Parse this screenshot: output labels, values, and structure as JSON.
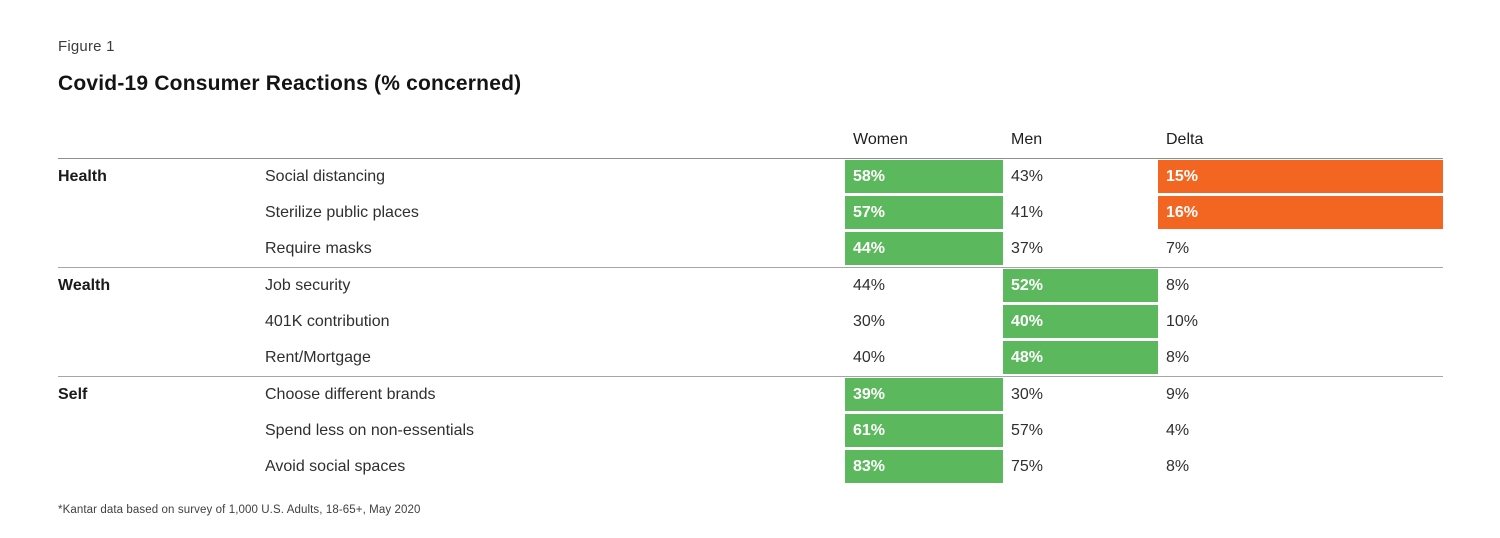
{
  "figure_label": "Figure 1",
  "title": "Covid-19 Consumer Reactions (% concerned)",
  "colors": {
    "green": "#5CB85C",
    "orange": "#F36621"
  },
  "table": {
    "columns": [
      "Women",
      "Men",
      "Delta"
    ],
    "sections": [
      {
        "category": "Health",
        "rows": [
          {
            "item": "Social distancing",
            "women": "58%",
            "men": "43%",
            "delta": "15%",
            "highlighted": "women",
            "delta_highlighted": true
          },
          {
            "item": "Sterilize public places",
            "women": "57%",
            "men": "41%",
            "delta": "16%",
            "highlighted": "women",
            "delta_highlighted": true
          },
          {
            "item": "Require masks",
            "women": "44%",
            "men": "37%",
            "delta": "7%",
            "highlighted": "women",
            "delta_highlighted": false
          }
        ]
      },
      {
        "category": "Wealth",
        "rows": [
          {
            "item": "Job security",
            "women": "44%",
            "men": "52%",
            "delta": "8%",
            "highlighted": "men",
            "delta_highlighted": false
          },
          {
            "item": "401K contribution",
            "women": "30%",
            "men": "40%",
            "delta": "10%",
            "highlighted": "men",
            "delta_highlighted": false
          },
          {
            "item": "Rent/Mortgage",
            "women": "40%",
            "men": "48%",
            "delta": "8%",
            "highlighted": "men",
            "delta_highlighted": false
          }
        ]
      },
      {
        "category": "Self",
        "rows": [
          {
            "item": "Choose different brands",
            "women": "39%",
            "men": "30%",
            "delta": "9%",
            "highlighted": "women",
            "delta_highlighted": false
          },
          {
            "item": "Spend less on non-essentials",
            "women": "61%",
            "men": "57%",
            "delta": "4%",
            "highlighted": "women",
            "delta_highlighted": false
          },
          {
            "item": "Avoid social spaces",
            "women": "83%",
            "men": "75%",
            "delta": "8%",
            "highlighted": "women",
            "delta_highlighted": false
          }
        ]
      }
    ]
  },
  "footnote": "*Kantar data based on survey of 1,000 U.S. Adults, 18-65+, May 2020",
  "chart_data": {
    "type": "table",
    "title": "Covid-19 Consumer Reactions (% concerned)",
    "columns": [
      "Women",
      "Men",
      "Delta"
    ],
    "groups": [
      "Health",
      "Wealth",
      "Self"
    ],
    "rows": [
      {
        "group": "Health",
        "label": "Social distancing",
        "women": 58,
        "men": 43,
        "delta": 15,
        "highlight": "women",
        "delta_highlight": true
      },
      {
        "group": "Health",
        "label": "Sterilize public places",
        "women": 57,
        "men": 41,
        "delta": 16,
        "highlight": "women",
        "delta_highlight": true
      },
      {
        "group": "Health",
        "label": "Require masks",
        "women": 44,
        "men": 37,
        "delta": 7,
        "highlight": "women",
        "delta_highlight": false
      },
      {
        "group": "Wealth",
        "label": "Job security",
        "women": 44,
        "men": 52,
        "delta": 8,
        "highlight": "men",
        "delta_highlight": false
      },
      {
        "group": "Wealth",
        "label": "401K contribution",
        "women": 30,
        "men": 40,
        "delta": 10,
        "highlight": "men",
        "delta_highlight": false
      },
      {
        "group": "Wealth",
        "label": "Rent/Mortgage",
        "women": 40,
        "men": 48,
        "delta": 8,
        "highlight": "men",
        "delta_highlight": false
      },
      {
        "group": "Self",
        "label": "Choose different brands",
        "women": 39,
        "men": 30,
        "delta": 9,
        "highlight": "women",
        "delta_highlight": false
      },
      {
        "group": "Self",
        "label": "Spend less on non-essentials",
        "women": 61,
        "men": 57,
        "delta": 4,
        "highlight": "women",
        "delta_highlight": false
      },
      {
        "group": "Self",
        "label": "Avoid social spaces",
        "women": 83,
        "men": 75,
        "delta": 8,
        "highlight": "women",
        "delta_highlight": false
      }
    ],
    "units": "percent concerned",
    "legend_position": "none"
  }
}
